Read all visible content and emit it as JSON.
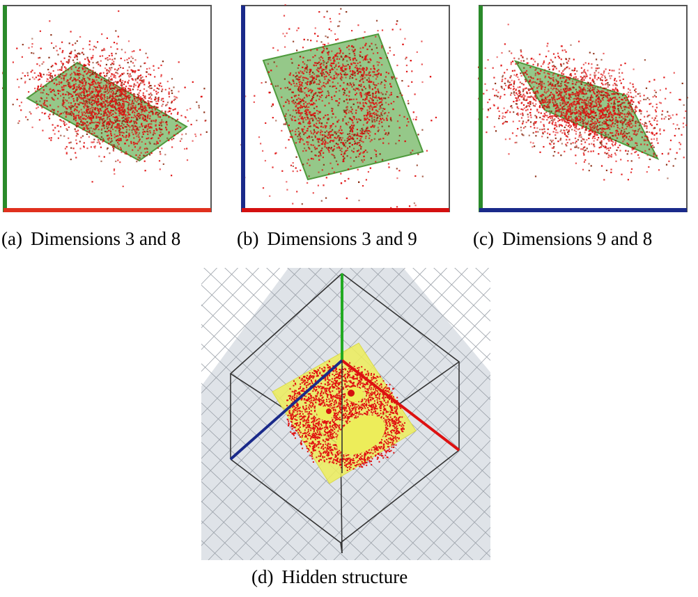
{
  "figure": {
    "panels": [
      {
        "id": "a",
        "tag": "(a)",
        "caption": "Dimensions 3 and 8",
        "view": "2D projection",
        "vertical_axis_color": "#1f8f1f",
        "horizontal_axis_color": "#e0301e"
      },
      {
        "id": "b",
        "tag": "(b)",
        "caption": "Dimensions 3 and 9",
        "view": "2D projection",
        "vertical_axis_color": "#1a2a8a",
        "horizontal_axis_color": "#d41010"
      },
      {
        "id": "c",
        "tag": "(c)",
        "caption": "Dimensions 9 and 8",
        "view": "2D projection",
        "vertical_axis_color": "#1f8f1f",
        "horizontal_axis_color": "#1a2a8a"
      },
      {
        "id": "d",
        "tag": "(d)",
        "caption": "Hidden structure",
        "view": "3D view with grid floor and bounding cube"
      }
    ],
    "colors": {
      "points": "#e01010",
      "plane_green": "#5cab4a",
      "plane_yellow": "#eded5a",
      "grid_floor": "#dfe3e8",
      "frame": "#444444",
      "axis_red": "#dd1111",
      "axis_green": "#22aa22",
      "axis_blue": "#1a2a8a"
    },
    "hidden_structure": "face pattern: two eyes and an open mouth"
  }
}
